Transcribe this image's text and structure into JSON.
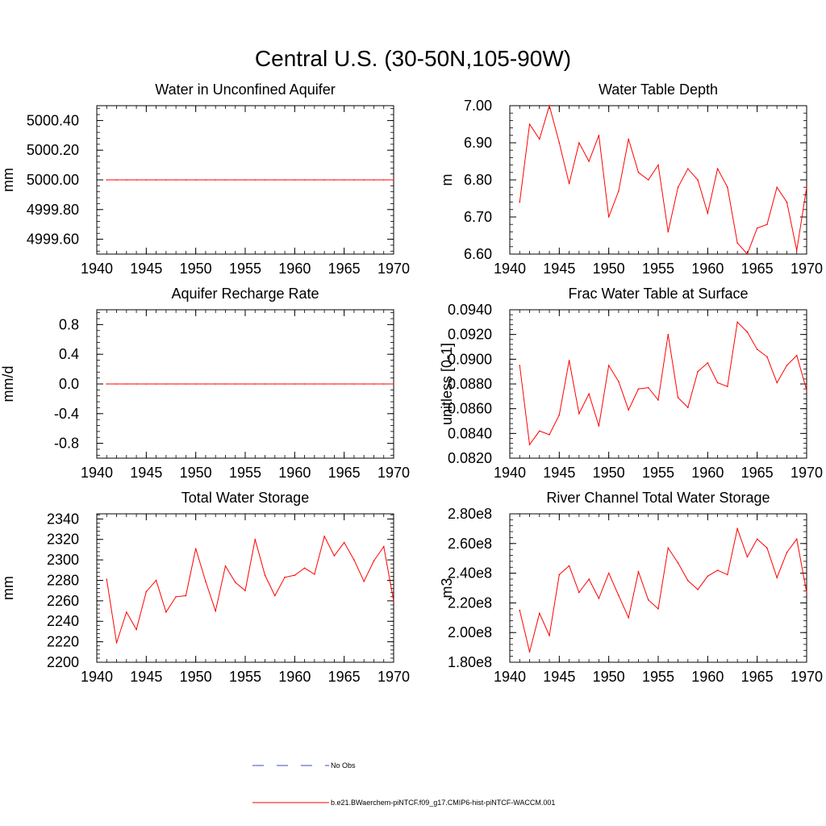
{
  "figure": {
    "title": "Central U.S. (30-50N,105-90W)"
  },
  "legend": {
    "entries": [
      {
        "label": "No Obs",
        "color": "#3b4cc0",
        "style": "dashed"
      },
      {
        "label": "b.e21.BWaerchem-piNTCF.f09_g17.CMIP6-hist-piNTCF-WACCM.001",
        "color": "#ff0000",
        "style": "solid"
      }
    ]
  },
  "colors": {
    "series": "#ff0000",
    "axis": "#000000",
    "obs": "#3b4cc0"
  },
  "chart_data": [
    {
      "type": "line",
      "title": "Water in Unconfined Aquifer",
      "xlabel": "",
      "ylabel": "mm",
      "xlim": [
        1940,
        1970
      ],
      "ylim": [
        4999.5,
        5000.5
      ],
      "xticks": [
        1940,
        1945,
        1950,
        1955,
        1960,
        1965,
        1970
      ],
      "xticklabels": [
        "1940",
        "1945",
        "1950",
        "1955",
        "1960",
        "1965",
        "1970"
      ],
      "yticks": [
        4999.6,
        4999.8,
        5000.0,
        5000.2,
        5000.4
      ],
      "yticklabels": [
        "4999.60",
        "4999.80",
        "5000.00",
        "5000.20",
        "5000.40"
      ],
      "x": [
        1941,
        1942,
        1943,
        1944,
        1945,
        1946,
        1947,
        1948,
        1949,
        1950,
        1951,
        1952,
        1953,
        1954,
        1955,
        1956,
        1957,
        1958,
        1959,
        1960,
        1961,
        1962,
        1963,
        1964,
        1965,
        1966,
        1967,
        1968,
        1969,
        1970
      ],
      "series": [
        {
          "values": [
            5000.0,
            5000.0,
            5000.0,
            5000.0,
            5000.0,
            5000.0,
            5000.0,
            5000.0,
            5000.0,
            5000.0,
            5000.0,
            5000.0,
            5000.0,
            5000.0,
            5000.0,
            5000.0,
            5000.0,
            5000.0,
            5000.0,
            5000.0,
            5000.0,
            5000.0,
            5000.0,
            5000.0,
            5000.0,
            5000.0,
            5000.0,
            5000.0,
            5000.0,
            5000.0
          ]
        }
      ]
    },
    {
      "type": "line",
      "title": "Water Table Depth",
      "xlabel": "",
      "ylabel": "m",
      "xlim": [
        1940,
        1970
      ],
      "ylim": [
        6.6,
        7.0
      ],
      "xticks": [
        1940,
        1945,
        1950,
        1955,
        1960,
        1965,
        1970
      ],
      "xticklabels": [
        "1940",
        "1945",
        "1950",
        "1955",
        "1960",
        "1965",
        "1970"
      ],
      "yticks": [
        6.6,
        6.7,
        6.8,
        6.9,
        7.0
      ],
      "yticklabels": [
        "6.60",
        "6.70",
        "6.80",
        "6.90",
        "7.00"
      ],
      "x": [
        1941,
        1942,
        1943,
        1944,
        1945,
        1946,
        1947,
        1948,
        1949,
        1950,
        1951,
        1952,
        1953,
        1954,
        1955,
        1956,
        1957,
        1958,
        1959,
        1960,
        1961,
        1962,
        1963,
        1964,
        1965,
        1966,
        1967,
        1968,
        1969,
        1970
      ],
      "series": [
        {
          "values": [
            6.74,
            6.95,
            6.91,
            7.0,
            6.9,
            6.79,
            6.9,
            6.85,
            6.92,
            6.7,
            6.77,
            6.91,
            6.82,
            6.8,
            6.84,
            6.66,
            6.78,
            6.83,
            6.8,
            6.71,
            6.83,
            6.78,
            6.63,
            6.6,
            6.67,
            6.68,
            6.78,
            6.74,
            6.61,
            6.78
          ]
        }
      ]
    },
    {
      "type": "line",
      "title": "Aquifer Recharge Rate",
      "xlabel": "",
      "ylabel": "mm/d",
      "xlim": [
        1940,
        1970
      ],
      "ylim": [
        -1.0,
        1.0
      ],
      "xticks": [
        1940,
        1945,
        1950,
        1955,
        1960,
        1965,
        1970
      ],
      "xticklabels": [
        "1940",
        "1945",
        "1950",
        "1955",
        "1960",
        "1965",
        "1970"
      ],
      "yticks": [
        -0.8,
        -0.4,
        0.0,
        0.4,
        0.8
      ],
      "yticklabels": [
        "-0.8",
        "-0.4",
        "0.0",
        "0.4",
        "0.8"
      ],
      "x": [
        1941,
        1942,
        1943,
        1944,
        1945,
        1946,
        1947,
        1948,
        1949,
        1950,
        1951,
        1952,
        1953,
        1954,
        1955,
        1956,
        1957,
        1958,
        1959,
        1960,
        1961,
        1962,
        1963,
        1964,
        1965,
        1966,
        1967,
        1968,
        1969,
        1970
      ],
      "series": [
        {
          "values": [
            0,
            0,
            0,
            0,
            0,
            0,
            0,
            0,
            0,
            0,
            0,
            0,
            0,
            0,
            0,
            0,
            0,
            0,
            0,
            0,
            0,
            0,
            0,
            0,
            0,
            0,
            0,
            0,
            0,
            0
          ]
        }
      ]
    },
    {
      "type": "line",
      "title": "Frac Water Table at Surface",
      "xlabel": "",
      "ylabel": "unitless [0-1]",
      "xlim": [
        1940,
        1970
      ],
      "ylim": [
        0.082,
        0.094
      ],
      "xticks": [
        1940,
        1945,
        1950,
        1955,
        1960,
        1965,
        1970
      ],
      "xticklabels": [
        "1940",
        "1945",
        "1950",
        "1955",
        "1960",
        "1965",
        "1970"
      ],
      "yticks": [
        0.082,
        0.084,
        0.086,
        0.088,
        0.09,
        0.092,
        0.094
      ],
      "yticklabels": [
        "0.0820",
        "0.0840",
        "0.0860",
        "0.0880",
        "0.0900",
        "0.0920",
        "0.0940"
      ],
      "x": [
        1941,
        1942,
        1943,
        1944,
        1945,
        1946,
        1947,
        1948,
        1949,
        1950,
        1951,
        1952,
        1953,
        1954,
        1955,
        1956,
        1957,
        1958,
        1959,
        1960,
        1961,
        1962,
        1963,
        1964,
        1965,
        1966,
        1967,
        1968,
        1969,
        1970
      ],
      "series": [
        {
          "values": [
            0.0895,
            0.0831,
            0.0842,
            0.0839,
            0.0855,
            0.0899,
            0.0856,
            0.0872,
            0.0846,
            0.0895,
            0.0882,
            0.0859,
            0.0876,
            0.0877,
            0.0867,
            0.092,
            0.0869,
            0.0861,
            0.089,
            0.0897,
            0.0881,
            0.0878,
            0.093,
            0.0922,
            0.0908,
            0.0902,
            0.0881,
            0.0895,
            0.0903,
            0.0875
          ]
        }
      ]
    },
    {
      "type": "line",
      "title": "Total Water Storage",
      "xlabel": "",
      "ylabel": "mm",
      "xlim": [
        1940,
        1970
      ],
      "ylim": [
        2200,
        2345
      ],
      "xticks": [
        1940,
        1945,
        1950,
        1955,
        1960,
        1965,
        1970
      ],
      "xticklabels": [
        "1940",
        "1945",
        "1950",
        "1955",
        "1960",
        "1965",
        "1970"
      ],
      "yticks": [
        2200,
        2220,
        2240,
        2260,
        2280,
        2300,
        2320,
        2340
      ],
      "yticklabels": [
        "2200",
        "2220",
        "2240",
        "2260",
        "2280",
        "2300",
        "2320",
        "2340"
      ],
      "x": [
        1941,
        1942,
        1943,
        1944,
        1945,
        1946,
        1947,
        1948,
        1949,
        1950,
        1951,
        1952,
        1953,
        1954,
        1955,
        1956,
        1957,
        1958,
        1959,
        1960,
        1961,
        1962,
        1963,
        1964,
        1965,
        1966,
        1967,
        1968,
        1969,
        1970
      ],
      "series": [
        {
          "values": [
            2281,
            2219,
            2249,
            2232,
            2269,
            2280,
            2249,
            2264,
            2265,
            2311,
            2279,
            2250,
            2294,
            2278,
            2270,
            2320,
            2285,
            2265,
            2283,
            2285,
            2292,
            2286,
            2323,
            2304,
            2317,
            2300,
            2279,
            2299,
            2313,
            2260
          ]
        }
      ]
    },
    {
      "type": "line",
      "title": "River Channel Total Water Storage",
      "xlabel": "",
      "ylabel": "m3",
      "xlim": [
        1940,
        1970
      ],
      "ylim": [
        180000000,
        280000000
      ],
      "xticks": [
        1940,
        1945,
        1950,
        1955,
        1960,
        1965,
        1970
      ],
      "xticklabels": [
        "1940",
        "1945",
        "1950",
        "1955",
        "1960",
        "1965",
        "1970"
      ],
      "yticks": [
        180000000,
        200000000,
        220000000,
        240000000,
        260000000,
        280000000
      ],
      "yticklabels": [
        "1.80e8",
        "2.00e8",
        "2.20e8",
        "2.40e8",
        "2.60e8",
        "2.80e8"
      ],
      "x": [
        1941,
        1942,
        1943,
        1944,
        1945,
        1946,
        1947,
        1948,
        1949,
        1950,
        1951,
        1952,
        1953,
        1954,
        1955,
        1956,
        1957,
        1958,
        1959,
        1960,
        1961,
        1962,
        1963,
        1964,
        1965,
        1966,
        1967,
        1968,
        1969,
        1970
      ],
      "series": [
        {
          "values": [
            215000000,
            187000000,
            213000000,
            198000000,
            239000000,
            245000000,
            227000000,
            236000000,
            223000000,
            240000000,
            225000000,
            210000000,
            241000000,
            222000000,
            216000000,
            257000000,
            247000000,
            235000000,
            229000000,
            238000000,
            242000000,
            239000000,
            270000000,
            251000000,
            263000000,
            257000000,
            237000000,
            254000000,
            263000000,
            227000000
          ]
        }
      ]
    }
  ]
}
